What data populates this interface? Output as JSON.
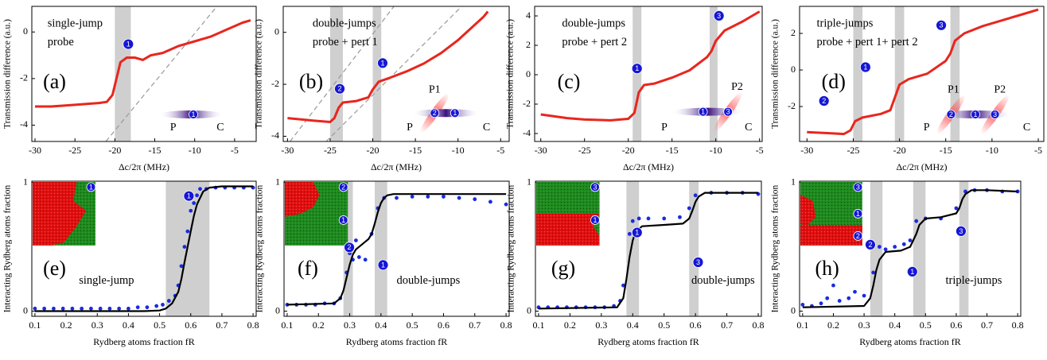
{
  "chart_data": [
    {
      "type": "line",
      "panel_label": "(a)",
      "annotations": [
        "single-jump",
        "probe"
      ],
      "markers": [
        "1"
      ],
      "inset_labels": [
        "P",
        "C"
      ],
      "inset_markers": [
        "1"
      ],
      "x_label": "Δc/2π (MHz)",
      "y_label": "Transmission difference (a.u.)",
      "xlim": [
        -30.4,
        -2.3
      ],
      "ylim": [
        -4.7,
        1.1
      ],
      "xticks": [
        -30,
        -25,
        -20,
        -15,
        -10,
        -5
      ],
      "yticks": [
        -4,
        -2,
        0
      ],
      "bands": [
        [
          -20,
          -18
        ]
      ],
      "series": [
        {
          "type": "line",
          "color": "#e8261e",
          "x": [
            -30,
            -28,
            -26,
            -24,
            -22,
            -21,
            -20.3,
            -19.8,
            -19.3,
            -18.5,
            -17.5,
            -16.5,
            -15.5,
            -14,
            -12,
            -10,
            -8,
            -6,
            -4,
            -3
          ],
          "values": [
            -3.2,
            -3.2,
            -3.15,
            -3.1,
            -3.05,
            -3.0,
            -2.7,
            -2.0,
            -1.3,
            -1.1,
            -1.1,
            -1.2,
            -1.0,
            -0.9,
            -0.6,
            -0.4,
            -0.2,
            0.1,
            0.4,
            0.5
          ]
        }
      ]
    },
    {
      "type": "line",
      "panel_label": "(b)",
      "annotations": [
        "double-jumps",
        "probe + pert 1"
      ],
      "markers": [
        "2",
        "1"
      ],
      "inset_labels": [
        "P1",
        "P",
        "C"
      ],
      "inset_markers": [
        "2",
        "1"
      ],
      "x_label": "Δc/2π (MHz)",
      "y_label": "Transmission difference (a.u.)",
      "xlim": [
        -30.5,
        -4
      ],
      "ylim": [
        -4.2,
        1.0
      ],
      "xticks": [
        -30,
        -25,
        -20,
        -15,
        -10,
        -5
      ],
      "yticks": [
        -4,
        -2,
        0
      ],
      "bands": [
        [
          -25,
          -23.5
        ],
        [
          -20,
          -19
        ]
      ],
      "series": [
        {
          "type": "line",
          "color": "#e8261e",
          "x": [
            -30,
            -27,
            -25,
            -24.5,
            -24,
            -23.5,
            -22,
            -20.5,
            -20,
            -19.3,
            -18,
            -16,
            -14,
            -12,
            -10,
            -8,
            -7,
            -6.5
          ],
          "values": [
            -3.3,
            -3.4,
            -3.45,
            -3.3,
            -2.9,
            -2.7,
            -2.65,
            -2.5,
            -2.2,
            -1.9,
            -1.75,
            -1.5,
            -1.2,
            -0.8,
            -0.3,
            0.3,
            0.6,
            0.8
          ]
        }
      ]
    },
    {
      "type": "line",
      "panel_label": "(c)",
      "annotations": [
        "double-jumps",
        "probe + pert 2"
      ],
      "markers": [
        "1",
        "3"
      ],
      "inset_labels": [
        "P2",
        "P",
        "C"
      ],
      "inset_markers": [
        "1",
        "3"
      ],
      "x_label": "Δc/2π (MHz)",
      "y_label": "Transmission difference (a.u.)",
      "xlim": [
        -30.7,
        -4.7
      ],
      "ylim": [
        -4.54,
        4.65
      ],
      "xticks": [
        -30,
        -25,
        -20,
        -15,
        -10,
        -5
      ],
      "yticks": [
        -4,
        -2,
        0,
        2,
        4
      ],
      "bands": [
        [
          -19.5,
          -18.5
        ],
        [
          -10.7,
          -9.8
        ]
      ],
      "series": [
        {
          "type": "line",
          "color": "#e8261e",
          "x": [
            -30,
            -27,
            -25,
            -22,
            -20,
            -19.3,
            -18.8,
            -18.2,
            -17,
            -15,
            -13,
            -11,
            -10.5,
            -10,
            -9,
            -7,
            -5
          ],
          "values": [
            -2.7,
            -2.95,
            -3.05,
            -3.1,
            -3.0,
            -2.6,
            -1.2,
            -0.7,
            -0.6,
            -0.2,
            0.3,
            1.2,
            1.6,
            2.3,
            3.0,
            3.6,
            4.3
          ]
        }
      ]
    },
    {
      "type": "line",
      "panel_label": "(d)",
      "annotations": [
        "triple-jumps",
        "probe + pert 1+ pert 2"
      ],
      "markers": [
        "2",
        "1",
        "3"
      ],
      "inset_labels": [
        "P1",
        "P2",
        "P",
        "C"
      ],
      "inset_markers": [
        "2",
        "1",
        "3"
      ],
      "x_label": "Δc/2π (MHz)",
      "y_label": "Transmission difference (a.u.)",
      "xlim": [
        -30.8,
        -4.4
      ],
      "ylim": [
        -3.91,
        3.48
      ],
      "xticks": [
        -30,
        -25,
        -20,
        -15,
        -10,
        -5
      ],
      "yticks": [
        -2,
        0,
        2
      ],
      "bands": [
        [
          -25,
          -24
        ],
        [
          -20.5,
          -19.5
        ],
        [
          -14.5,
          -13.5
        ]
      ],
      "series": [
        {
          "type": "line",
          "color": "#e8261e",
          "x": [
            -30,
            -28,
            -26,
            -25.3,
            -24.8,
            -24,
            -22,
            -21,
            -20.5,
            -20,
            -19,
            -17,
            -15,
            -14.5,
            -14,
            -13,
            -11,
            -9,
            -7,
            -5
          ],
          "values": [
            -3.4,
            -3.45,
            -3.5,
            -3.3,
            -2.8,
            -2.6,
            -2.4,
            -2.2,
            -1.5,
            -0.8,
            -0.5,
            -0.2,
            0.5,
            0.9,
            1.6,
            2.0,
            2.4,
            2.7,
            3.0,
            3.3
          ]
        }
      ]
    },
    {
      "type": "scatter",
      "panel_label": "(e)",
      "annotations": [
        "single-jump"
      ],
      "markers": [
        "1"
      ],
      "inset_markers": [
        "1"
      ],
      "x_label": "Rydberg atoms fraction fR",
      "y_label": "Interacting Rydberg atoms fraction",
      "xlim": [
        0.09,
        0.81
      ],
      "ylim": [
        -0.04,
        1.01
      ],
      "xticks": [
        0.1,
        0.2,
        0.3,
        0.4,
        0.5,
        0.6,
        0.7,
        0.8
      ],
      "yticks": [
        0,
        1
      ],
      "bands": [
        [
          0.52,
          0.66
        ]
      ],
      "series": [
        {
          "type": "scatter",
          "color": "#1a2be0",
          "x": [
            0.1,
            0.13,
            0.16,
            0.19,
            0.22,
            0.25,
            0.28,
            0.31,
            0.34,
            0.37,
            0.4,
            0.43,
            0.46,
            0.49,
            0.51,
            0.53,
            0.55,
            0.56,
            0.57,
            0.58,
            0.59,
            0.6,
            0.61,
            0.62,
            0.63,
            0.65,
            0.68,
            0.71,
            0.74,
            0.77,
            0.8
          ],
          "values": [
            0.02,
            0.02,
            0.02,
            0.02,
            0.02,
            0.02,
            0.02,
            0.02,
            0.02,
            0.02,
            0.02,
            0.03,
            0.03,
            0.04,
            0.05,
            0.08,
            0.12,
            0.2,
            0.35,
            0.5,
            0.62,
            0.78,
            0.84,
            0.9,
            0.95,
            0.95,
            0.96,
            0.96,
            0.96,
            0.96,
            0.96
          ]
        },
        {
          "type": "line",
          "color": "#000000",
          "x": [
            0.1,
            0.3,
            0.45,
            0.5,
            0.52,
            0.54,
            0.56,
            0.57,
            0.58,
            0.59,
            0.6,
            0.61,
            0.62,
            0.64,
            0.66,
            0.7,
            0.8
          ],
          "values": [
            0,
            0,
            0,
            0.005,
            0.02,
            0.06,
            0.15,
            0.25,
            0.38,
            0.5,
            0.62,
            0.74,
            0.83,
            0.93,
            0.96,
            0.97,
            0.97
          ]
        }
      ]
    },
    {
      "type": "scatter",
      "panel_label": "(f)",
      "annotations": [
        "double-jumps"
      ],
      "markers": [
        "2",
        "1"
      ],
      "inset_markers": [
        "2",
        "1"
      ],
      "x_label": "Rydberg atoms fraction fR",
      "y_label": "Interacting Rydberg atoms fraction",
      "xlim": [
        0.09,
        0.81
      ],
      "ylim": [
        -0.04,
        1.01
      ],
      "xticks": [
        0.1,
        0.2,
        0.3,
        0.4,
        0.5,
        0.6,
        0.7,
        0.8
      ],
      "yticks": [
        0,
        1
      ],
      "bands": [
        [
          0.28,
          0.31
        ],
        [
          0.38,
          0.42
        ]
      ],
      "series": [
        {
          "type": "scatter",
          "color": "#1a2be0",
          "x": [
            0.1,
            0.13,
            0.16,
            0.19,
            0.22,
            0.25,
            0.27,
            0.29,
            0.3,
            0.31,
            0.32,
            0.33,
            0.35,
            0.37,
            0.39,
            0.41,
            0.45,
            0.5,
            0.55,
            0.6,
            0.65,
            0.7,
            0.75,
            0.8
          ],
          "values": [
            0.05,
            0.05,
            0.05,
            0.05,
            0.06,
            0.06,
            0.1,
            0.3,
            0.45,
            0.4,
            0.55,
            0.42,
            0.4,
            0.6,
            0.8,
            0.88,
            0.88,
            0.89,
            0.89,
            0.89,
            0.88,
            0.87,
            0.85,
            0.83
          ]
        },
        {
          "type": "line",
          "color": "#000000",
          "x": [
            0.1,
            0.25,
            0.27,
            0.28,
            0.29,
            0.3,
            0.31,
            0.32,
            0.34,
            0.36,
            0.37,
            0.38,
            0.39,
            0.4,
            0.41,
            0.42,
            0.44,
            0.5,
            0.8
          ],
          "values": [
            0.05,
            0.06,
            0.1,
            0.16,
            0.26,
            0.36,
            0.44,
            0.48,
            0.52,
            0.56,
            0.6,
            0.68,
            0.77,
            0.84,
            0.88,
            0.9,
            0.91,
            0.91,
            0.91
          ]
        }
      ]
    },
    {
      "type": "scatter",
      "panel_label": "(g)",
      "annotations": [
        "double-jumps"
      ],
      "markers": [
        "1",
        "3"
      ],
      "inset_markers": [
        "3",
        "1"
      ],
      "x_label": "Rydberg atoms fraction fR",
      "y_label": "Interacting Rydberg atoms fraction",
      "xlim": [
        0.09,
        0.81
      ],
      "ylim": [
        -0.04,
        1.01
      ],
      "xticks": [
        0.1,
        0.2,
        0.3,
        0.4,
        0.5,
        0.6,
        0.7,
        0.8
      ],
      "yticks": [
        0,
        1
      ],
      "bands": [
        [
          0.38,
          0.42
        ],
        [
          0.58,
          0.61
        ]
      ],
      "series": [
        {
          "type": "scatter",
          "color": "#1a2be0",
          "x": [
            0.1,
            0.13,
            0.16,
            0.19,
            0.22,
            0.25,
            0.28,
            0.31,
            0.34,
            0.36,
            0.37,
            0.39,
            0.4,
            0.42,
            0.45,
            0.5,
            0.55,
            0.58,
            0.6,
            0.65,
            0.7,
            0.75,
            0.8
          ],
          "values": [
            0.03,
            0.03,
            0.03,
            0.03,
            0.03,
            0.03,
            0.03,
            0.03,
            0.04,
            0.08,
            0.2,
            0.6,
            0.7,
            0.72,
            0.72,
            0.72,
            0.73,
            0.8,
            0.9,
            0.92,
            0.92,
            0.92,
            0.91
          ]
        },
        {
          "type": "line",
          "color": "#000000",
          "x": [
            0.1,
            0.35,
            0.37,
            0.38,
            0.39,
            0.4,
            0.41,
            0.43,
            0.5,
            0.56,
            0.58,
            0.59,
            0.6,
            0.61,
            0.63,
            0.7,
            0.8
          ],
          "values": [
            0.02,
            0.03,
            0.1,
            0.25,
            0.42,
            0.55,
            0.62,
            0.66,
            0.67,
            0.68,
            0.72,
            0.78,
            0.85,
            0.89,
            0.92,
            0.92,
            0.92
          ]
        }
      ]
    },
    {
      "type": "scatter",
      "panel_label": "(h)",
      "annotations": [
        "triple-jumps"
      ],
      "markers": [
        "2",
        "1",
        "3"
      ],
      "inset_markers": [
        "3",
        "1",
        "2"
      ],
      "x_label": "Rydberg atoms fraction fR",
      "y_label": "Interacting Rydberg atoms fraction",
      "xlim": [
        0.09,
        0.81
      ],
      "ylim": [
        -0.04,
        1.01
      ],
      "xticks": [
        0.1,
        0.2,
        0.3,
        0.4,
        0.5,
        0.6,
        0.7,
        0.8
      ],
      "yticks": [
        0,
        1
      ],
      "bands": [
        [
          0.32,
          0.36
        ],
        [
          0.46,
          0.5
        ],
        [
          0.61,
          0.64
        ]
      ],
      "series": [
        {
          "type": "scatter",
          "color": "#1a2be0",
          "x": [
            0.1,
            0.13,
            0.16,
            0.18,
            0.2,
            0.22,
            0.25,
            0.27,
            0.3,
            0.33,
            0.35,
            0.37,
            0.4,
            0.43,
            0.45,
            0.47,
            0.5,
            0.55,
            0.6,
            0.63,
            0.66,
            0.7,
            0.75,
            0.8
          ],
          "values": [
            0.05,
            0.04,
            0.06,
            0.1,
            0.2,
            0.08,
            0.1,
            0.15,
            0.12,
            0.3,
            0.5,
            0.48,
            0.5,
            0.52,
            0.55,
            0.7,
            0.72,
            0.72,
            0.8,
            0.93,
            0.94,
            0.94,
            0.93,
            0.93
          ]
        },
        {
          "type": "line",
          "color": "#000000",
          "x": [
            0.1,
            0.3,
            0.32,
            0.33,
            0.34,
            0.35,
            0.37,
            0.42,
            0.45,
            0.47,
            0.48,
            0.5,
            0.55,
            0.6,
            0.61,
            0.62,
            0.63,
            0.65,
            0.7,
            0.8
          ],
          "values": [
            0.03,
            0.04,
            0.1,
            0.2,
            0.32,
            0.4,
            0.46,
            0.47,
            0.5,
            0.6,
            0.67,
            0.72,
            0.73,
            0.76,
            0.8,
            0.87,
            0.91,
            0.94,
            0.94,
            0.93
          ]
        }
      ]
    }
  ]
}
